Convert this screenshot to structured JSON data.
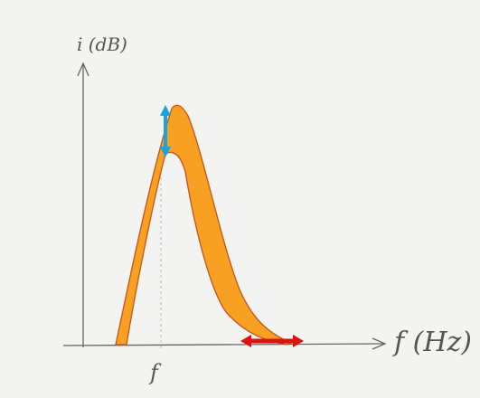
{
  "axes": {
    "y_label": "i (dB)",
    "x_label": "f (Hz)"
  },
  "marker_label": "f"
}
